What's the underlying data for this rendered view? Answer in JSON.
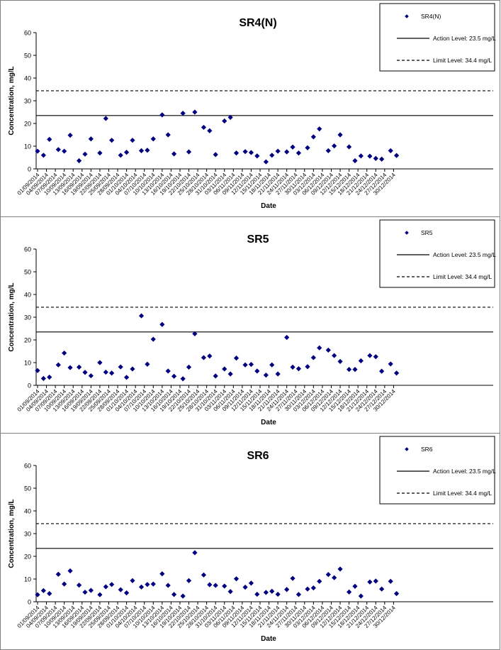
{
  "x_tick_labels": [
    "01/09/2014",
    "04/09/2014",
    "07/09/2014",
    "10/09/2014",
    "13/09/2014",
    "16/09/2014",
    "19/09/2014",
    "22/09/2014",
    "25/09/2014",
    "28/09/2014",
    "01/10/2014",
    "04/10/2014",
    "07/10/2014",
    "10/10/2014",
    "13/10/2014",
    "16/10/2014",
    "19/10/2014",
    "22/10/2014",
    "25/10/2014",
    "28/10/2014",
    "31/10/2014",
    "03/11/2014",
    "06/11/2014",
    "09/11/2014",
    "12/11/2014",
    "15/11/2014",
    "18/11/2014",
    "21/11/2014",
    "24/11/2014",
    "27/11/2014",
    "30/11/2014",
    "03/12/2014",
    "06/12/2014",
    "09/12/2014",
    "12/12/2014",
    "15/12/2014",
    "18/12/2014",
    "21/12/2014",
    "24/12/2014",
    "27/12/2014",
    "30/12/2014"
  ],
  "action_label": "Action Level: 23.5 mg/L",
  "limit_label": "Limit Level: 34.4 mg/L",
  "action_level": 23.5,
  "limit_level": 34.4,
  "colors": {
    "marker": "#000080",
    "line": "#000000",
    "frame": "#808080"
  },
  "chart_data": [
    {
      "type": "scatter",
      "title": "SR4(N)",
      "xlabel": "Date",
      "ylabel": "Concentration, mg/L",
      "ylim": [
        0,
        60
      ],
      "yticks": [
        "0",
        "10",
        "20",
        "30",
        "40",
        "50",
        "60"
      ],
      "legend_position": "top-right",
      "series": [
        {
          "name": "SR4(N)",
          "x": [
            "01/09/2014",
            "03/09/2014",
            "05/09/2014",
            "08/09/2014",
            "10/09/2014",
            "12/09/2014",
            "15/09/2014",
            "17/09/2014",
            "19/09/2014",
            "22/09/2014",
            "24/09/2014",
            "26/09/2014",
            "29/09/2014",
            "01/10/2014",
            "03/10/2014",
            "06/10/2014",
            "08/10/2014",
            "10/10/2014",
            "13/10/2014",
            "15/10/2014",
            "17/10/2014",
            "20/10/2014",
            "22/10/2014",
            "24/10/2014",
            "27/10/2014",
            "29/10/2014",
            "31/10/2014",
            "03/11/2014",
            "05/11/2014",
            "07/11/2014",
            "10/11/2014",
            "12/11/2014",
            "14/11/2014",
            "17/11/2014",
            "19/11/2014",
            "21/11/2014",
            "24/11/2014",
            "26/11/2014",
            "28/11/2014",
            "01/12/2014",
            "03/12/2014",
            "05/12/2014",
            "08/12/2014",
            "10/12/2014",
            "12/12/2014",
            "15/12/2014",
            "17/12/2014",
            "19/12/2014",
            "22/12/2014",
            "24/12/2014",
            "26/12/2014",
            "29/12/2014",
            "31/12/2014"
          ],
          "values": [
            7.8,
            6,
            13,
            8.5,
            7.8,
            14.8,
            3.6,
            6.5,
            13.2,
            7,
            22.2,
            12.6,
            6,
            7.3,
            12.6,
            8,
            8.2,
            13.2,
            23.8,
            15,
            6.6,
            24.5,
            7.5,
            25,
            18.3,
            16.8,
            6.3,
            21.1,
            22.7,
            7,
            7.6,
            7.2,
            5.7,
            3.1,
            6,
            7.8,
            7.5,
            9.6,
            7,
            9.3,
            14.1,
            17.6,
            8,
            10.1,
            15,
            9.7,
            3.6,
            5.7,
            5.6,
            4.6,
            4.3,
            8,
            5.9
          ]
        }
      ]
    },
    {
      "type": "scatter",
      "title": "SR5",
      "xlabel": "Date",
      "ylabel": "Concentration, mg/L",
      "ylim": [
        0,
        60
      ],
      "yticks": [
        "0",
        "10",
        "20",
        "30",
        "40",
        "50",
        "60"
      ],
      "legend_position": "top-right",
      "series": [
        {
          "name": "SR5",
          "x": [
            "01/09/2014",
            "03/09/2014",
            "05/09/2014",
            "08/09/2014",
            "10/09/2014",
            "12/09/2014",
            "15/09/2014",
            "17/09/2014",
            "19/09/2014",
            "22/09/2014",
            "24/09/2014",
            "26/09/2014",
            "29/09/2014",
            "01/10/2014",
            "03/10/2014",
            "06/10/2014",
            "08/10/2014",
            "10/10/2014",
            "13/10/2014",
            "15/10/2014",
            "17/10/2014",
            "20/10/2014",
            "22/10/2014",
            "24/10/2014",
            "27/10/2014",
            "29/10/2014",
            "31/10/2014",
            "03/11/2014",
            "05/11/2014",
            "07/11/2014",
            "10/11/2014",
            "12/11/2014",
            "14/11/2014",
            "17/11/2014",
            "19/11/2014",
            "21/11/2014",
            "24/11/2014",
            "26/11/2014",
            "28/11/2014",
            "01/12/2014",
            "03/12/2014",
            "05/12/2014",
            "08/12/2014",
            "10/12/2014",
            "12/12/2014",
            "15/12/2014",
            "17/12/2014",
            "19/12/2014",
            "22/12/2014",
            "24/12/2014",
            "26/12/2014",
            "29/12/2014",
            "31/12/2014"
          ],
          "values": [
            6.5,
            3,
            3.6,
            9,
            14.2,
            7.8,
            8,
            5.7,
            4.2,
            10,
            5.8,
            5.4,
            8.1,
            3.5,
            7.2,
            30.6,
            9.3,
            20.3,
            26.8,
            6.3,
            4,
            2.9,
            8,
            22.7,
            12.2,
            12.9,
            4.1,
            7.2,
            5,
            12,
            9,
            9.2,
            6.3,
            4.5,
            9,
            5,
            21.1,
            8,
            7.3,
            8.2,
            12.2,
            16.5,
            15.5,
            13.1,
            10.5,
            7,
            7,
            10.8,
            13.1,
            12.6,
            6.2,
            9.4,
            5.4
          ]
        }
      ]
    },
    {
      "type": "scatter",
      "title": "SR6",
      "xlabel": "Date",
      "ylabel": "Concentration, mg/L",
      "ylim": [
        0,
        60
      ],
      "yticks": [
        "0",
        "10",
        "20",
        "30",
        "40",
        "50",
        "60"
      ],
      "legend_position": "top-right",
      "series": [
        {
          "name": "SR6",
          "x": [
            "01/09/2014",
            "03/09/2014",
            "05/09/2014",
            "08/09/2014",
            "10/09/2014",
            "12/09/2014",
            "15/09/2014",
            "17/09/2014",
            "19/09/2014",
            "22/09/2014",
            "24/09/2014",
            "26/09/2014",
            "29/09/2014",
            "01/10/2014",
            "03/10/2014",
            "06/10/2014",
            "08/10/2014",
            "10/10/2014",
            "13/10/2014",
            "15/10/2014",
            "17/10/2014",
            "20/10/2014",
            "22/10/2014",
            "24/10/2014",
            "27/10/2014",
            "29/10/2014",
            "31/10/2014",
            "03/11/2014",
            "05/11/2014",
            "07/11/2014",
            "10/11/2014",
            "12/11/2014",
            "14/11/2014",
            "17/11/2014",
            "19/11/2014",
            "21/11/2014",
            "24/11/2014",
            "26/11/2014",
            "28/11/2014",
            "01/12/2014",
            "03/12/2014",
            "05/12/2014",
            "08/12/2014",
            "10/12/2014",
            "12/12/2014",
            "15/12/2014",
            "17/12/2014",
            "19/12/2014",
            "22/12/2014",
            "24/12/2014",
            "26/12/2014",
            "29/12/2014",
            "31/12/2014"
          ],
          "values": [
            3.1,
            4.9,
            3.6,
            12.1,
            7.8,
            13.6,
            7.3,
            4.2,
            5,
            3.1,
            6.6,
            7.6,
            5.3,
            3.9,
            9.3,
            6.5,
            7.6,
            7.8,
            12.3,
            7.2,
            3.2,
            2.5,
            9.3,
            21.6,
            11.8,
            7.5,
            7.2,
            6.9,
            4.5,
            10.1,
            6.4,
            8.2,
            3.3,
            4.1,
            4.6,
            3.3,
            5.4,
            10.3,
            3.2,
            5.6,
            6.1,
            9,
            12,
            10.6,
            14.4,
            4.3,
            6.8,
            2.5,
            8.7,
            9.1,
            5.6,
            9,
            3.6
          ]
        }
      ]
    }
  ]
}
